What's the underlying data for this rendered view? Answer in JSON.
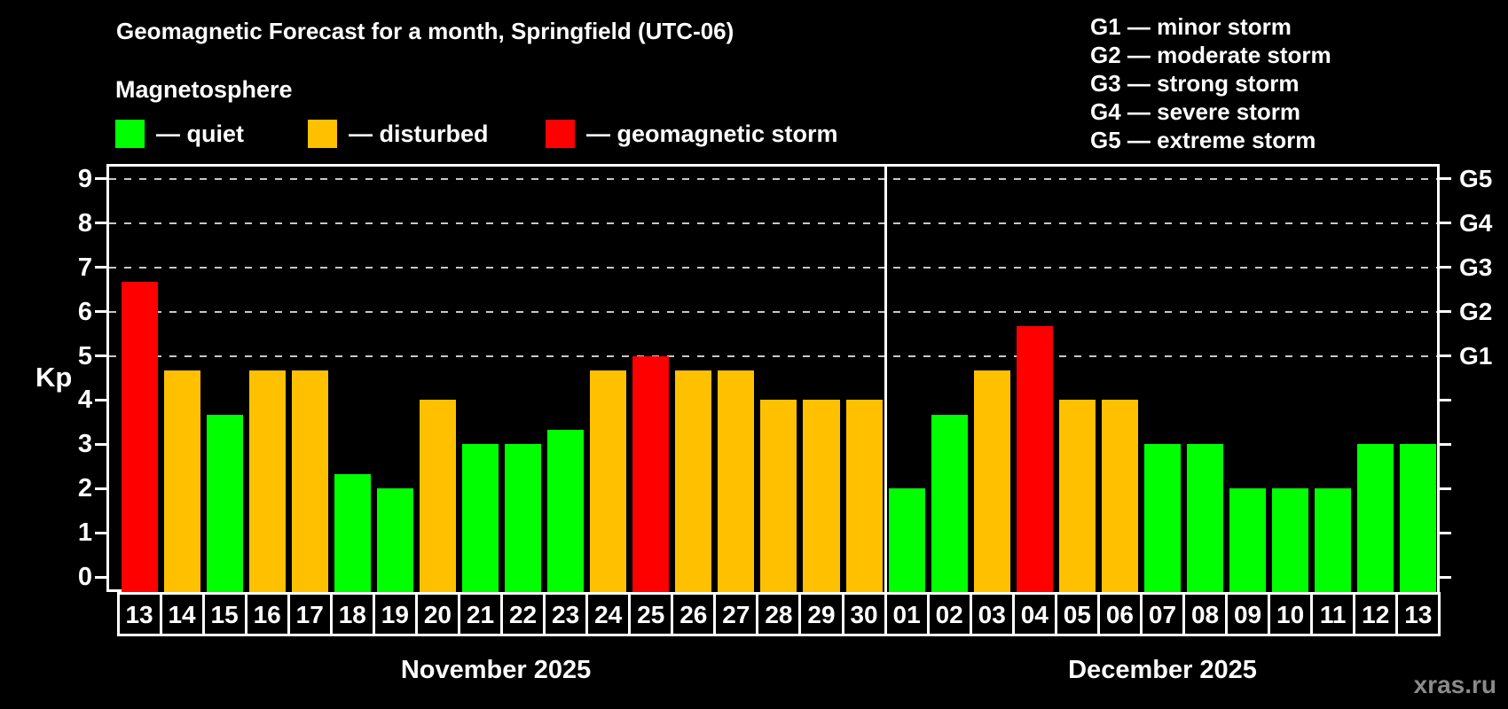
{
  "title": "Geomagnetic Forecast for a month, Springfield (UTC-06)",
  "subtitle": "Magnetosphere",
  "watermark": "xras.ru",
  "legend": {
    "items": [
      {
        "level": "quiet",
        "label": "— quiet"
      },
      {
        "level": "disturbed",
        "label": "— disturbed"
      },
      {
        "level": "storm",
        "label": "— geomagnetic storm"
      }
    ]
  },
  "storm_scale_legend": {
    "lines": [
      "G1 — minor storm",
      "G2 — moderate storm",
      "G3 — strong storm",
      "G4 — severe storm",
      "G5 — extreme storm"
    ]
  },
  "colors": {
    "quiet": "#00ff00",
    "disturbed": "#ffc000",
    "storm": "#ff0000",
    "background": "#000000",
    "axis": "#ffffff",
    "gridline": "#c8c8c8",
    "watermark": "#8a8a8a"
  },
  "chart_data": {
    "type": "bar",
    "title": "Geomagnetic Forecast for a month, Springfield (UTC-06)",
    "ylabel": "Kp",
    "ylim": [
      0,
      9.33
    ],
    "y_ticks": [
      "0",
      "1",
      "2",
      "3",
      "4",
      "5",
      "6",
      "7",
      "8",
      "9"
    ],
    "g_levels": [
      {
        "label": "G1",
        "kp": 5
      },
      {
        "label": "G2",
        "kp": 6
      },
      {
        "label": "G3",
        "kp": 7
      },
      {
        "label": "G4",
        "kp": 8
      },
      {
        "label": "G5",
        "kp": 9
      }
    ],
    "grid": "horizontal dashed lines at Kp 5..9 (G1..G5), right axis labeled G1-G5",
    "legend_position": "top-left",
    "months": [
      {
        "label": "November 2025",
        "days": [
          {
            "day": "13",
            "kp": 6.67,
            "level": "storm"
          },
          {
            "day": "14",
            "kp": 4.67,
            "level": "disturbed"
          },
          {
            "day": "15",
            "kp": 3.67,
            "level": "quiet"
          },
          {
            "day": "16",
            "kp": 4.67,
            "level": "disturbed"
          },
          {
            "day": "17",
            "kp": 4.67,
            "level": "disturbed"
          },
          {
            "day": "18",
            "kp": 2.33,
            "level": "quiet"
          },
          {
            "day": "19",
            "kp": 2.0,
            "level": "quiet"
          },
          {
            "day": "20",
            "kp": 4.0,
            "level": "disturbed"
          },
          {
            "day": "21",
            "kp": 3.0,
            "level": "quiet"
          },
          {
            "day": "22",
            "kp": 3.0,
            "level": "quiet"
          },
          {
            "day": "23",
            "kp": 3.33,
            "level": "quiet"
          },
          {
            "day": "24",
            "kp": 4.67,
            "level": "disturbed"
          },
          {
            "day": "25",
            "kp": 5.0,
            "level": "storm"
          },
          {
            "day": "26",
            "kp": 4.67,
            "level": "disturbed"
          },
          {
            "day": "27",
            "kp": 4.67,
            "level": "disturbed"
          },
          {
            "day": "28",
            "kp": 4.0,
            "level": "disturbed"
          },
          {
            "day": "29",
            "kp": 4.0,
            "level": "disturbed"
          },
          {
            "day": "30",
            "kp": 4.0,
            "level": "disturbed"
          }
        ]
      },
      {
        "label": "December 2025",
        "days": [
          {
            "day": "01",
            "kp": 2.0,
            "level": "quiet"
          },
          {
            "day": "02",
            "kp": 3.67,
            "level": "quiet"
          },
          {
            "day": "03",
            "kp": 4.67,
            "level": "disturbed"
          },
          {
            "day": "04",
            "kp": 5.67,
            "level": "storm"
          },
          {
            "day": "05",
            "kp": 4.0,
            "level": "disturbed"
          },
          {
            "day": "06",
            "kp": 4.0,
            "level": "disturbed"
          },
          {
            "day": "07",
            "kp": 3.0,
            "level": "quiet"
          },
          {
            "day": "08",
            "kp": 3.0,
            "level": "quiet"
          },
          {
            "day": "09",
            "kp": 2.0,
            "level": "quiet"
          },
          {
            "day": "10",
            "kp": 2.0,
            "level": "quiet"
          },
          {
            "day": "11",
            "kp": 2.0,
            "level": "quiet"
          },
          {
            "day": "12",
            "kp": 3.0,
            "level": "quiet"
          },
          {
            "day": "13",
            "kp": 3.0,
            "level": "quiet"
          }
        ]
      }
    ]
  }
}
